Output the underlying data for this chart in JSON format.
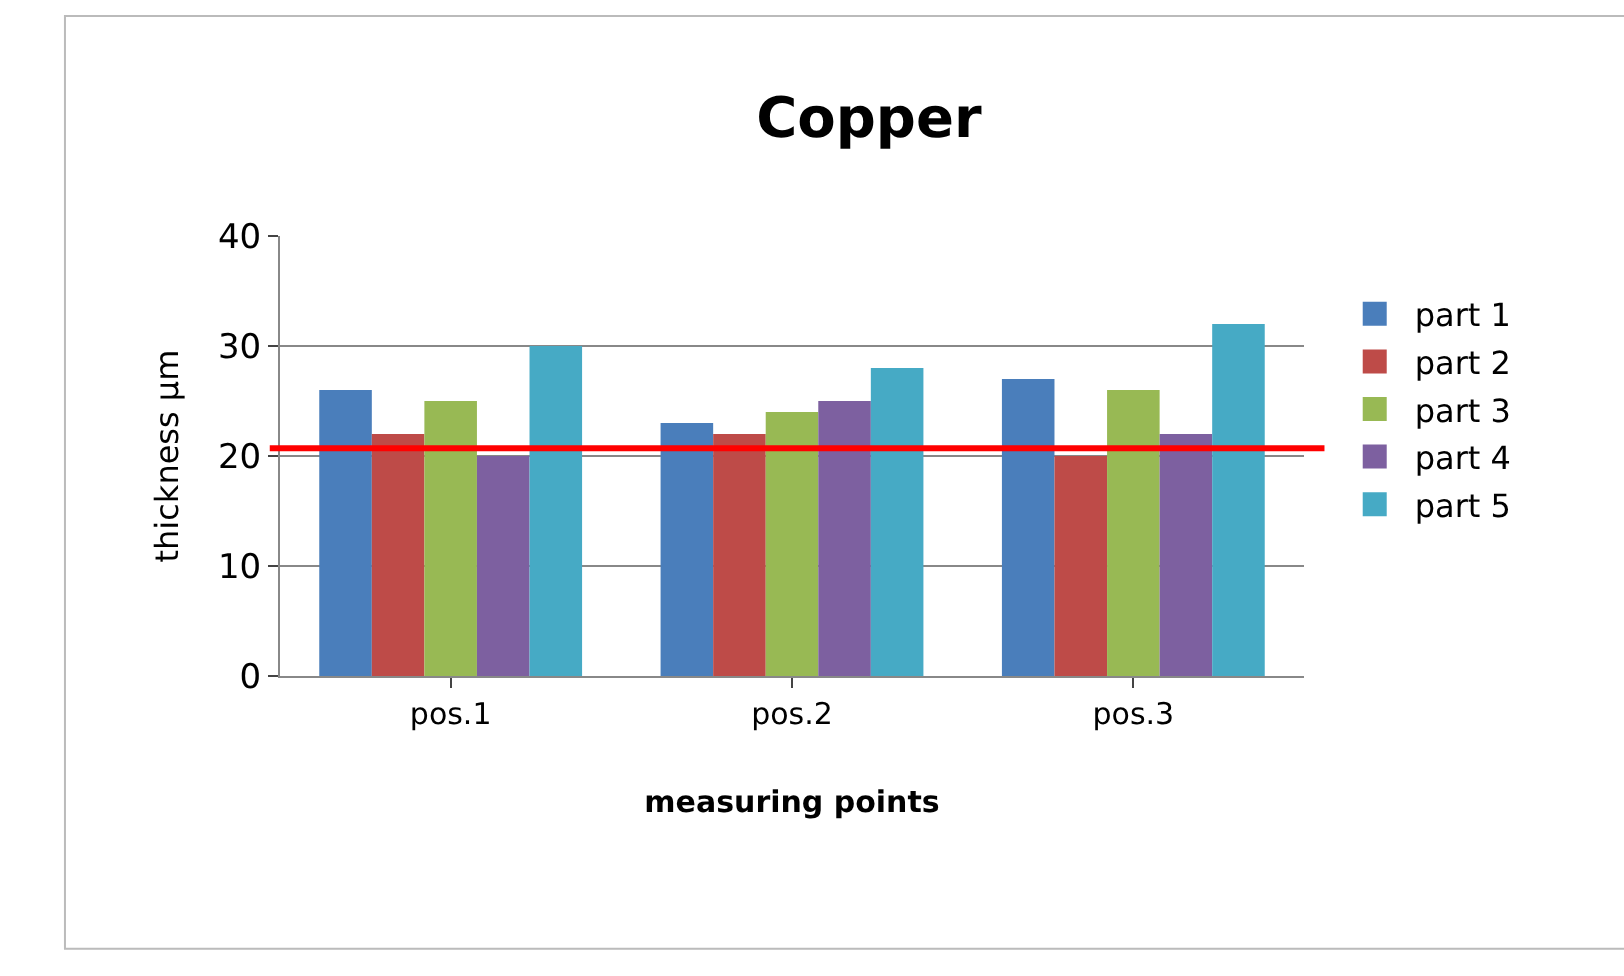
{
  "chart_data": {
    "type": "bar",
    "title": "Copper",
    "xlabel": "measuring points",
    "ylabel": "thickness µm",
    "categories": [
      "pos.1",
      "pos.2",
      "pos.3"
    ],
    "series": [
      {
        "name": "part 1",
        "color": "#4a7ebb",
        "values": [
          26,
          23,
          27
        ]
      },
      {
        "name": "part 2",
        "color": "#be4b48",
        "values": [
          22,
          22,
          20
        ]
      },
      {
        "name": "part 3",
        "color": "#98b954",
        "values": [
          25,
          24,
          26
        ]
      },
      {
        "name": "part 4",
        "color": "#7d60a0",
        "values": [
          20,
          25,
          22
        ]
      },
      {
        "name": "part 5",
        "color": "#46aac5",
        "values": [
          30,
          28,
          32
        ]
      }
    ],
    "ylim": [
      0,
      40
    ],
    "yticks": [
      0,
      10,
      20,
      30,
      40
    ],
    "grid": "y",
    "legend": "right",
    "ref_lines": [
      {
        "axis": "y",
        "value": 20.7,
        "color": "#ff0000"
      }
    ]
  }
}
